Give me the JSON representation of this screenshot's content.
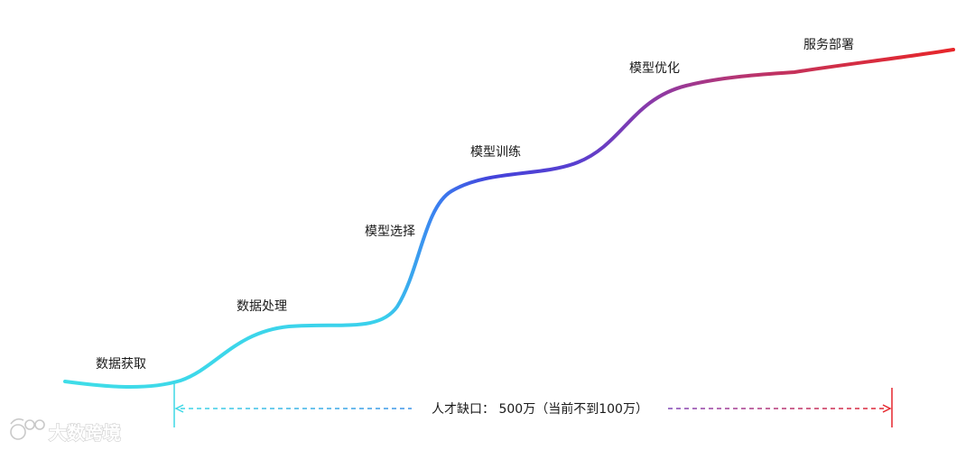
{
  "stages": [
    {
      "label": "数据获取"
    },
    {
      "label": "数据处理"
    },
    {
      "label": "模型选择"
    },
    {
      "label": "模型训练"
    },
    {
      "label": "模型优化"
    },
    {
      "label": "服务部署"
    }
  ],
  "talent_gap": {
    "label": "人才缺口： 500万（当前不到100万）"
  },
  "watermark": {
    "text": "大数跨境"
  },
  "colors": {
    "curve_start": "#3dd8e6",
    "curve_mid": "#3f4fe0",
    "curve_purple": "#8a3fb0",
    "curve_end": "#e5262d",
    "text": "#1a1a1a"
  }
}
